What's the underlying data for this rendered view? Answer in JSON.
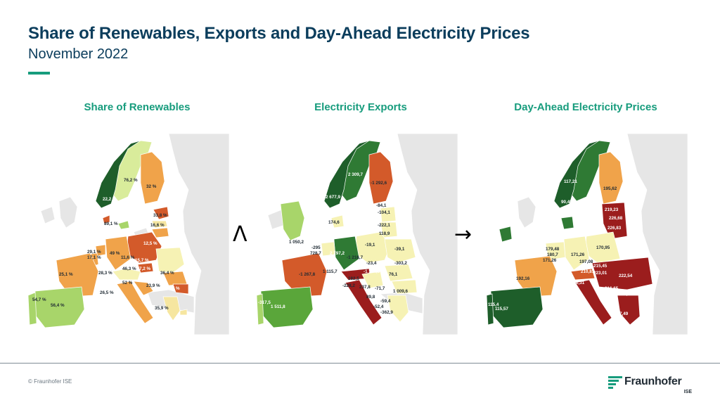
{
  "header": {
    "title": "Share of Renewables, Exports and Day-Ahead Electricity Prices",
    "subtitle": "November 2022"
  },
  "colors": {
    "accent": "#179c7d",
    "title": "#0b3d5c",
    "dark_green": "#1e5e2a",
    "mid_green": "#5aa63a",
    "light_green": "#a8d56a",
    "pale_yellow": "#f6f2b4",
    "orange": "#f0a34a",
    "red": "#d35a2a",
    "dark_red": "#9b1d1d",
    "nonmember": "#e6e6e6"
  },
  "connectors": {
    "first": "Λ",
    "second": "→"
  },
  "maps": [
    {
      "title": "Share of Renewables",
      "labels": [
        "76,2 %",
        "32 %",
        "22,2 %",
        "33,8 %",
        "16,6 %",
        "89,1 %",
        "12,5 %",
        "29,1 %",
        "17,1 %",
        "49 %",
        "11,6 %",
        "15,7 %",
        "46,3 %",
        "7,2 %",
        "25,1 %",
        "28,3 %",
        "36,4 %",
        "52 %",
        "23,9 %",
        "13,7 %",
        "26,5 %",
        "54,7 %",
        "56,4 %",
        "35,9 %"
      ]
    },
    {
      "title": "Electricity Exports",
      "labels": [
        "2 309,7",
        "-1 292,6",
        "2 677,9",
        "-84,1",
        "-104,1",
        "-222,1",
        "174,6",
        "118,9",
        "1 050,2",
        "-295",
        "728,7",
        "2 797,2",
        "-19,1",
        "-39,1",
        "-1 216,7",
        "-23,4",
        "-303,2",
        "-1 374,8",
        "-1 267,8",
        "1 115,7",
        "76,1",
        "182,5",
        "-228,2",
        "237,8",
        "-71,7",
        "1 009,6",
        "-4 082",
        "89,8",
        "-59,4",
        "-52,4",
        "-362,9",
        "-317,5",
        "1 511,8"
      ]
    },
    {
      "title": "Day-Ahead Electricity Prices",
      "labels": [
        "117,21",
        "195,62",
        "90,49",
        "219,23",
        "226,68",
        "226,83",
        "179,48",
        "180,7",
        "171,26",
        "171,26",
        "170,95",
        "197,08",
        "215,45",
        "192,16",
        "219,22",
        "210,81",
        "223,01",
        "222,54",
        "222,31",
        "216,65",
        "218,26",
        "220,21",
        "115,4",
        "115,57",
        "227,49"
      ]
    }
  ],
  "footer": {
    "copyright": "© Fraunhofer ISE",
    "logo_name": "Fraunhofer",
    "logo_sub": "ISE"
  }
}
